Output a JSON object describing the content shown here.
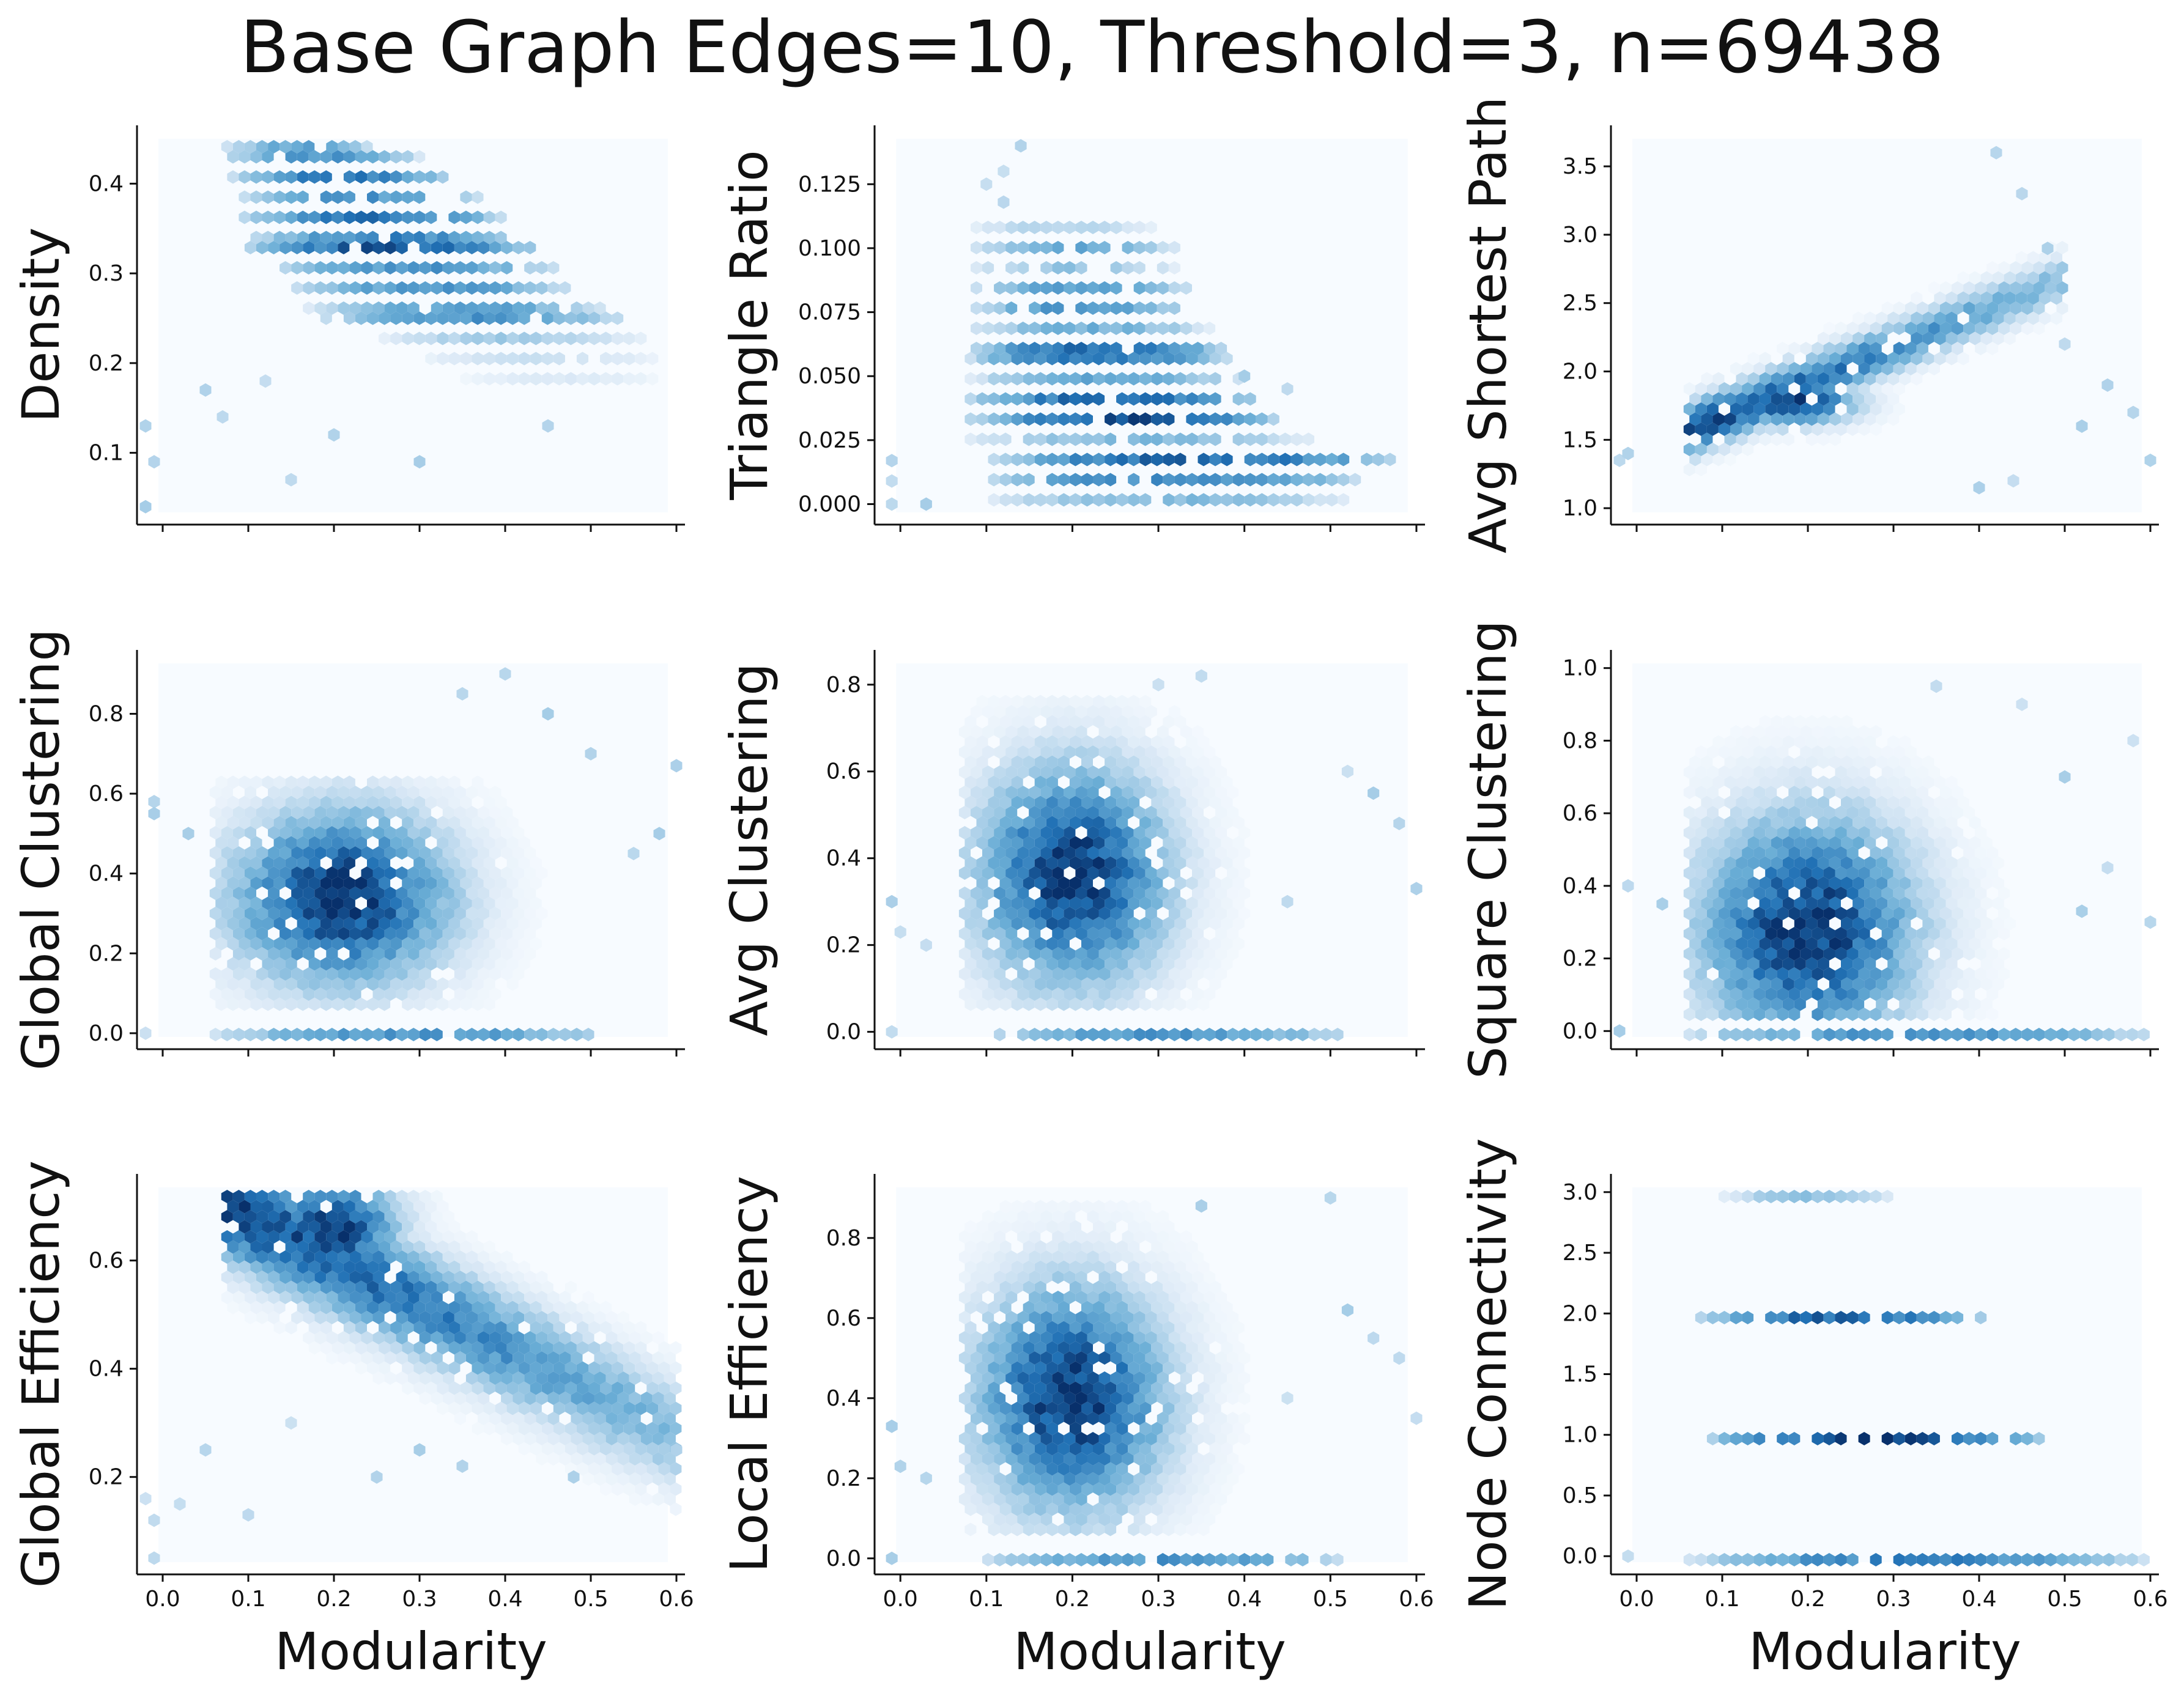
{
  "figure": {
    "title": "Base Graph Edges=10, Threshold=3, n=69438"
  },
  "colors": {
    "background_bin": "#f7fbff",
    "low": "#dbe9f6",
    "mid": "#6baed6",
    "high": "#2171b5",
    "peak": "#08306b",
    "axis": "#111111"
  },
  "chart_data": [
    {
      "type": "hexbin",
      "xlabel": "",
      "ylabel": "Density",
      "xlim": [
        -0.03,
        0.61
      ],
      "ylim": [
        0.02,
        0.465
      ],
      "xticks": [
        0.0,
        0.1,
        0.2,
        0.3,
        0.4,
        0.5,
        0.6
      ],
      "show_xtick_labels": false,
      "yticks": [
        0.1,
        0.2,
        0.3,
        0.4
      ],
      "ytick_labels": [
        "0.1",
        "0.2",
        "0.3",
        "0.4"
      ],
      "bands": [
        {
          "y": 0.445,
          "x": [
            0.07,
            0.25
          ],
          "w": 0.5
        },
        {
          "y": 0.425,
          "x": [
            0.07,
            0.3
          ],
          "w": 0.6
        },
        {
          "y": 0.405,
          "x": [
            0.08,
            0.34
          ],
          "w": 0.75
        },
        {
          "y": 0.385,
          "x": [
            0.09,
            0.38
          ],
          "w": 0.6
        },
        {
          "y": 0.365,
          "x": [
            0.09,
            0.4
          ],
          "w": 0.75
        },
        {
          "y": 0.345,
          "x": [
            0.1,
            0.42
          ],
          "w": 0.7
        },
        {
          "y": 0.325,
          "x": [
            0.1,
            0.44
          ],
          "w": 0.9
        },
        {
          "y": 0.305,
          "x": [
            0.12,
            0.46
          ],
          "w": 0.6
        },
        {
          "y": 0.285,
          "x": [
            0.15,
            0.48
          ],
          "w": 0.6
        },
        {
          "y": 0.265,
          "x": [
            0.17,
            0.52
          ],
          "w": 0.55
        },
        {
          "y": 0.245,
          "x": [
            0.18,
            0.54
          ],
          "w": 0.6
        },
        {
          "y": 0.225,
          "x": [
            0.25,
            0.56
          ],
          "w": 0.3
        },
        {
          "y": 0.205,
          "x": [
            0.3,
            0.58
          ],
          "w": 0.18
        },
        {
          "y": 0.185,
          "x": [
            0.35,
            0.58
          ],
          "w": 0.12
        }
      ],
      "sparse": [
        [
          -0.02,
          0.04
        ],
        [
          -0.01,
          0.09
        ],
        [
          -0.02,
          0.13
        ],
        [
          0.05,
          0.17
        ],
        [
          0.12,
          0.18
        ],
        [
          0.15,
          0.07
        ],
        [
          0.2,
          0.12
        ],
        [
          0.3,
          0.09
        ],
        [
          0.45,
          0.13
        ],
        [
          0.07,
          0.14
        ]
      ]
    },
    {
      "type": "hexbin",
      "xlabel": "",
      "ylabel": "Triangle Ratio",
      "xlim": [
        -0.03,
        0.61
      ],
      "ylim": [
        -0.008,
        0.148
      ],
      "xticks": [
        0.0,
        0.1,
        0.2,
        0.3,
        0.4,
        0.5,
        0.6
      ],
      "show_xtick_labels": false,
      "yticks": [
        0.0,
        0.025,
        0.05,
        0.075,
        0.1,
        0.125
      ],
      "ytick_labels": [
        "0.000",
        "0.025",
        "0.050",
        "0.075",
        "0.100",
        "0.125"
      ],
      "bands": [
        {
          "y": 0.0,
          "x": [
            0.1,
            0.52
          ],
          "w": 0.4
        },
        {
          "y": 0.01,
          "x": [
            0.1,
            0.54
          ],
          "w": 0.7
        },
        {
          "y": 0.016,
          "x": [
            0.1,
            0.58
          ],
          "w": 0.85
        },
        {
          "y": 0.025,
          "x": [
            0.08,
            0.48
          ],
          "w": 0.4
        },
        {
          "y": 0.034,
          "x": [
            0.08,
            0.44
          ],
          "w": 0.9
        },
        {
          "y": 0.042,
          "x": [
            0.08,
            0.42
          ],
          "w": 0.85
        },
        {
          "y": 0.05,
          "x": [
            0.08,
            0.4
          ],
          "w": 0.5
        },
        {
          "y": 0.059,
          "x": [
            0.08,
            0.38
          ],
          "w": 0.8
        },
        {
          "y": 0.067,
          "x": [
            0.08,
            0.36
          ],
          "w": 0.45
        },
        {
          "y": 0.075,
          "x": [
            0.08,
            0.34
          ],
          "w": 0.6
        },
        {
          "y": 0.083,
          "x": [
            0.08,
            0.34
          ],
          "w": 0.55
        },
        {
          "y": 0.092,
          "x": [
            0.08,
            0.32
          ],
          "w": 0.35
        },
        {
          "y": 0.1,
          "x": [
            0.08,
            0.32
          ],
          "w": 0.5
        },
        {
          "y": 0.108,
          "x": [
            0.08,
            0.3
          ],
          "w": 0.25
        }
      ],
      "sparse": [
        [
          -0.01,
          0.0
        ],
        [
          -0.01,
          0.009
        ],
        [
          -0.01,
          0.017
        ],
        [
          0.03,
          0.0
        ],
        [
          0.1,
          0.125
        ],
        [
          0.12,
          0.13
        ],
        [
          0.14,
          0.14
        ],
        [
          0.12,
          0.118
        ],
        [
          0.4,
          0.05
        ],
        [
          0.45,
          0.045
        ]
      ]
    },
    {
      "type": "hexbin",
      "xlabel": "",
      "ylabel": "Avg Shortest Path",
      "xlim": [
        -0.03,
        0.61
      ],
      "ylim": [
        0.88,
        3.8
      ],
      "xticks": [
        0.0,
        0.1,
        0.2,
        0.3,
        0.4,
        0.5,
        0.6
      ],
      "show_xtick_labels": false,
      "yticks": [
        1.0,
        1.5,
        2.0,
        2.5,
        3.0,
        3.5
      ],
      "ytick_labels": [
        "1.0",
        "1.5",
        "2.0",
        "2.5",
        "3.0",
        "3.5"
      ],
      "trend": {
        "x0": 0.08,
        "x1": 0.45,
        "y0": 1.62,
        "y1": 2.55,
        "spread": 0.22,
        "peak": 0.18,
        "peakY": 1.78
      },
      "sparse": [
        [
          -0.02,
          1.35
        ],
        [
          -0.01,
          1.4
        ],
        [
          0.42,
          3.6
        ],
        [
          0.45,
          3.3
        ],
        [
          0.48,
          2.9
        ],
        [
          0.5,
          2.2
        ],
        [
          0.55,
          1.9
        ],
        [
          0.58,
          1.7
        ],
        [
          0.6,
          1.35
        ],
        [
          0.44,
          1.2
        ],
        [
          0.4,
          1.15
        ],
        [
          0.52,
          1.6
        ]
      ]
    },
    {
      "type": "hexbin",
      "xlabel": "",
      "ylabel": "Global Clustering",
      "xlim": [
        -0.03,
        0.61
      ],
      "ylim": [
        -0.04,
        0.96
      ],
      "xticks": [
        0.0,
        0.1,
        0.2,
        0.3,
        0.4,
        0.5,
        0.6
      ],
      "show_xtick_labels": false,
      "yticks": [
        0.0,
        0.2,
        0.4,
        0.6,
        0.8
      ],
      "ytick_labels": [
        "0.0",
        "0.2",
        "0.4",
        "0.6",
        "0.8"
      ],
      "blob": {
        "cx": 0.21,
        "cy": 0.34,
        "sx": 0.08,
        "sy": 0.14,
        "xr": [
          0.06,
          0.48
        ],
        "yr": [
          0.05,
          0.65
        ]
      },
      "baseline": {
        "y": 0.0,
        "x": [
          0.06,
          0.52
        ]
      },
      "sparse": [
        [
          -0.02,
          0.0
        ],
        [
          -0.01,
          0.58
        ],
        [
          -0.01,
          0.55
        ],
        [
          0.03,
          0.5
        ],
        [
          0.4,
          0.9
        ],
        [
          0.45,
          0.8
        ],
        [
          0.5,
          0.7
        ],
        [
          0.55,
          0.45
        ],
        [
          0.58,
          0.5
        ],
        [
          0.6,
          0.67
        ],
        [
          0.35,
          0.85
        ]
      ]
    },
    {
      "type": "hexbin",
      "xlabel": "",
      "ylabel": "Avg Clustering",
      "xlim": [
        -0.03,
        0.61
      ],
      "ylim": [
        -0.04,
        0.88
      ],
      "xticks": [
        0.0,
        0.1,
        0.2,
        0.3,
        0.4,
        0.5,
        0.6
      ],
      "show_xtick_labels": false,
      "yticks": [
        0.0,
        0.2,
        0.4,
        0.6,
        0.8
      ],
      "ytick_labels": [
        "0.0",
        "0.2",
        "0.4",
        "0.6",
        "0.8"
      ],
      "blob": {
        "cx": 0.2,
        "cy": 0.36,
        "sx": 0.07,
        "sy": 0.16,
        "xr": [
          0.07,
          0.5
        ],
        "yr": [
          0.05,
          0.78
        ]
      },
      "baseline": {
        "y": 0.0,
        "x": [
          0.1,
          0.52
        ]
      },
      "sparse": [
        [
          -0.01,
          0.0
        ],
        [
          -0.01,
          0.3
        ],
        [
          0.0,
          0.23
        ],
        [
          0.03,
          0.2
        ],
        [
          0.45,
          0.3
        ],
        [
          0.52,
          0.6
        ],
        [
          0.55,
          0.55
        ],
        [
          0.58,
          0.48
        ],
        [
          0.6,
          0.33
        ],
        [
          0.35,
          0.82
        ],
        [
          0.3,
          0.8
        ]
      ]
    },
    {
      "type": "hexbin",
      "xlabel": "",
      "ylabel": "Square Clustering",
      "xlim": [
        -0.03,
        0.61
      ],
      "ylim": [
        -0.05,
        1.05
      ],
      "xticks": [
        0.0,
        0.1,
        0.2,
        0.3,
        0.4,
        0.5,
        0.6
      ],
      "show_xtick_labels": false,
      "yticks": [
        0.0,
        0.2,
        0.4,
        0.6,
        0.8,
        1.0
      ],
      "ytick_labels": [
        "0.0",
        "0.2",
        "0.4",
        "0.6",
        "0.8",
        "1.0"
      ],
      "blob": {
        "cx": 0.2,
        "cy": 0.28,
        "sx": 0.08,
        "sy": 0.2,
        "xr": [
          0.06,
          0.52
        ],
        "yr": [
          0.03,
          0.88
        ]
      },
      "baseline": {
        "y": 0.0,
        "x": [
          0.06,
          0.6
        ]
      },
      "sparse": [
        [
          -0.02,
          0.0
        ],
        [
          -0.01,
          0.4
        ],
        [
          0.03,
          0.35
        ],
        [
          0.45,
          0.9
        ],
        [
          0.5,
          0.7
        ],
        [
          0.55,
          0.45
        ],
        [
          0.58,
          0.8
        ],
        [
          0.52,
          0.33
        ],
        [
          0.6,
          0.3
        ],
        [
          0.35,
          0.95
        ]
      ]
    },
    {
      "type": "hexbin",
      "xlabel": "Modularity",
      "ylabel": "Global Efficiency",
      "xlim": [
        -0.03,
        0.61
      ],
      "ylim": [
        0.02,
        0.76
      ],
      "xticks": [
        0.0,
        0.1,
        0.2,
        0.3,
        0.4,
        0.5,
        0.6
      ],
      "show_xtick_labels": true,
      "xtick_labels": [
        "0.0",
        "0.1",
        "0.2",
        "0.3",
        "0.4",
        "0.5",
        "0.6"
      ],
      "yticks": [
        0.2,
        0.4,
        0.6
      ],
      "ytick_labels": [
        "0.2",
        "0.4",
        "0.6"
      ],
      "trend": {
        "x0": 0.09,
        "x1": 0.55,
        "y0": 0.69,
        "y1": 0.32,
        "spread": 0.12,
        "peak": 0.2,
        "peakY": 0.66
      },
      "sparse": [
        [
          -0.01,
          0.05
        ],
        [
          -0.02,
          0.16
        ],
        [
          -0.01,
          0.12
        ],
        [
          0.02,
          0.15
        ],
        [
          0.05,
          0.25
        ],
        [
          0.1,
          0.13
        ],
        [
          0.15,
          0.3
        ],
        [
          0.25,
          0.2
        ],
        [
          0.3,
          0.25
        ],
        [
          0.35,
          0.22
        ],
        [
          0.48,
          0.2
        ],
        [
          0.6,
          0.25
        ]
      ]
    },
    {
      "type": "hexbin",
      "xlabel": "Modularity",
      "ylabel": "Local Efficiency",
      "xlim": [
        -0.03,
        0.61
      ],
      "ylim": [
        -0.04,
        0.96
      ],
      "xticks": [
        0.0,
        0.1,
        0.2,
        0.3,
        0.4,
        0.5,
        0.6
      ],
      "show_xtick_labels": true,
      "xtick_labels": [
        "0.0",
        "0.1",
        "0.2",
        "0.3",
        "0.4",
        "0.5",
        "0.6"
      ],
      "yticks": [
        0.0,
        0.2,
        0.4,
        0.6,
        0.8
      ],
      "ytick_labels": [
        "0.0",
        "0.2",
        "0.4",
        "0.6",
        "0.8"
      ],
      "blob": {
        "cx": 0.2,
        "cy": 0.4,
        "sx": 0.07,
        "sy": 0.18,
        "xr": [
          0.07,
          0.5
        ],
        "yr": [
          0.05,
          0.88
        ]
      },
      "baseline": {
        "y": 0.0,
        "x": [
          0.1,
          0.52
        ]
      },
      "sparse": [
        [
          -0.01,
          0.0
        ],
        [
          -0.01,
          0.33
        ],
        [
          0.0,
          0.23
        ],
        [
          0.03,
          0.2
        ],
        [
          0.45,
          0.4
        ],
        [
          0.52,
          0.62
        ],
        [
          0.55,
          0.55
        ],
        [
          0.58,
          0.5
        ],
        [
          0.6,
          0.35
        ],
        [
          0.5,
          0.9
        ],
        [
          0.35,
          0.88
        ]
      ]
    },
    {
      "type": "hexbin",
      "xlabel": "Modularity",
      "ylabel": "Node Connectivity",
      "xlim": [
        -0.03,
        0.61
      ],
      "ylim": [
        -0.15,
        3.15
      ],
      "xticks": [
        0.0,
        0.1,
        0.2,
        0.3,
        0.4,
        0.5,
        0.6
      ],
      "show_xtick_labels": true,
      "xtick_labels": [
        "0.0",
        "0.1",
        "0.2",
        "0.3",
        "0.4",
        "0.5",
        "0.6"
      ],
      "yticks": [
        0.0,
        0.5,
        1.0,
        1.5,
        2.0,
        2.5,
        3.0
      ],
      "ytick_labels": [
        "0.0",
        "0.5",
        "1.0",
        "1.5",
        "2.0",
        "2.5",
        "3.0"
      ],
      "bands": [
        {
          "y": 3.0,
          "x": [
            0.1,
            0.3
          ],
          "w": 0.35
        },
        {
          "y": 2.0,
          "x": [
            0.07,
            0.41
          ],
          "w": 0.85
        },
        {
          "y": 1.0,
          "x": [
            0.08,
            0.48
          ],
          "w": 0.95
        },
        {
          "y": 0.0,
          "x": [
            0.06,
            0.6
          ],
          "w": 0.7
        }
      ],
      "sparse": [
        [
          -0.01,
          0.0
        ]
      ]
    }
  ]
}
